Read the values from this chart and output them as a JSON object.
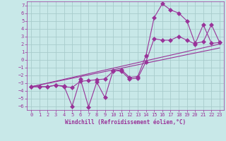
{
  "xlabel": "Windchill (Refroidissement éolien,°C)",
  "bg_color": "#c8e8e8",
  "grid_color": "#a8cccc",
  "line_color": "#993399",
  "xlim": [
    -0.5,
    23.5
  ],
  "ylim": [
    -6.5,
    7.5
  ],
  "xticks": [
    0,
    1,
    2,
    3,
    4,
    5,
    6,
    7,
    8,
    9,
    10,
    11,
    12,
    13,
    14,
    15,
    16,
    17,
    18,
    19,
    20,
    21,
    22,
    23
  ],
  "yticks": [
    -6,
    -5,
    -4,
    -3,
    -2,
    -1,
    0,
    1,
    2,
    3,
    4,
    5,
    6,
    7
  ],
  "line1_x": [
    0,
    1,
    2,
    3,
    4,
    5,
    6,
    7,
    8,
    9,
    10,
    11,
    12,
    13,
    14,
    15,
    16,
    17,
    18,
    19,
    20,
    21,
    22,
    23
  ],
  "line1_y": [
    -3.5,
    -3.5,
    -3.5,
    -3.3,
    -3.4,
    -6.0,
    -2.5,
    -6.1,
    -2.9,
    -4.9,
    -1.4,
    -1.5,
    -2.5,
    -2.4,
    -0.3,
    2.7,
    2.5,
    2.5,
    3.0,
    2.5,
    2.0,
    4.5,
    2.1,
    2.2
  ],
  "line2_x": [
    0,
    1,
    2,
    3,
    4,
    5,
    6,
    7,
    8,
    9,
    10,
    11,
    12,
    13,
    14,
    15,
    16,
    17,
    18,
    19,
    20,
    21,
    22,
    23
  ],
  "line2_y": [
    -3.5,
    -3.5,
    -3.5,
    -3.3,
    -3.5,
    -3.6,
    -2.8,
    -2.7,
    -2.6,
    -2.5,
    -1.5,
    -1.3,
    -2.3,
    -2.2,
    0.5,
    5.4,
    7.2,
    6.4,
    6.0,
    5.0,
    2.1,
    2.3,
    4.5,
    2.2
  ],
  "line3_x": [
    0,
    23
  ],
  "line3_y": [
    -3.5,
    2.0
  ],
  "line4_x": [
    0,
    23
  ],
  "line4_y": [
    -3.5,
    1.5
  ],
  "label_fontsize": 5.5,
  "tick_fontsize": 5,
  "lw": 0.8,
  "marker_size": 3
}
